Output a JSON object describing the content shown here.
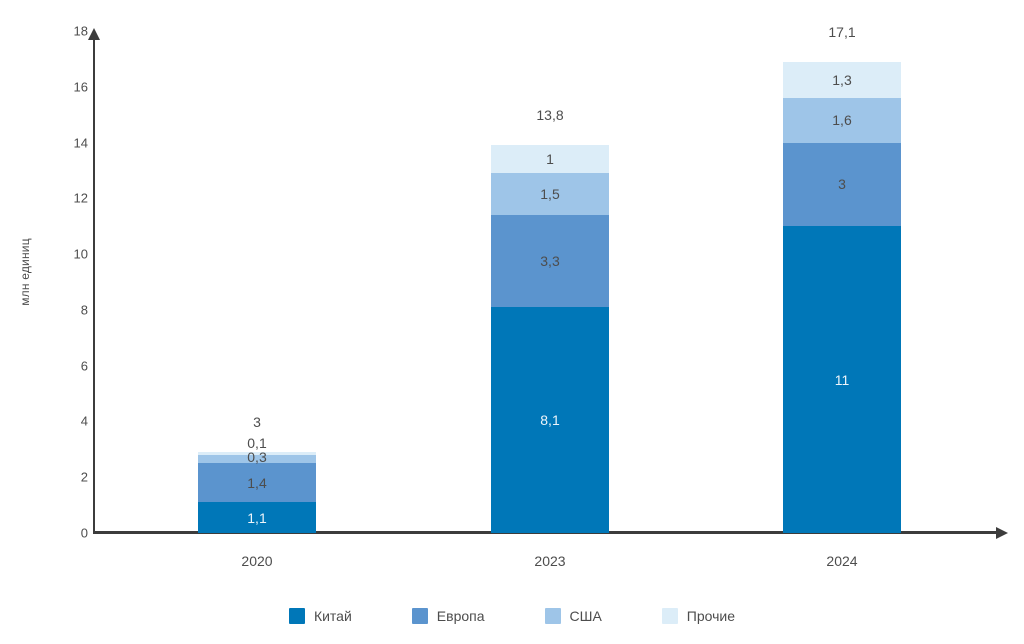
{
  "chart_data": {
    "type": "bar",
    "stacked": true,
    "title": "",
    "xlabel": "",
    "ylabel": "млн единиц",
    "categories": [
      "2020",
      "2023",
      "2024"
    ],
    "series": [
      {
        "name": "Китай",
        "color": "#0077b8",
        "values": [
          1.1,
          8.1,
          11
        ],
        "labels": [
          "1,1",
          "8,1",
          "11"
        ]
      },
      {
        "name": "Европа",
        "color": "#5b94ce",
        "values": [
          1.4,
          3.3,
          3
        ],
        "labels": [
          "1,4",
          "3,3",
          "3"
        ]
      },
      {
        "name": "США",
        "color": "#9ec5e8",
        "values": [
          0.3,
          1.5,
          1.6
        ],
        "labels": [
          "0,3",
          "1,5",
          "1,6"
        ]
      },
      {
        "name": "Прочие",
        "color": "#dcedf8",
        "values": [
          0.1,
          1.0,
          1.3
        ],
        "labels": [
          "0,1",
          "1",
          "1,3"
        ]
      }
    ],
    "totals": [
      "3",
      "13,8",
      "17,1"
    ],
    "yticks": [
      0,
      2,
      4,
      6,
      8,
      10,
      12,
      14,
      16,
      18
    ],
    "ylim": [
      0,
      18
    ],
    "grid": false,
    "legend_position": "bottom",
    "value_label_inside_color_first_series": "#ffffff",
    "value_label_color": "#4d4d4d"
  },
  "colors": {
    "axis": "#3c3c3c",
    "text": "#4d4d4d",
    "background": "#ffffff"
  }
}
